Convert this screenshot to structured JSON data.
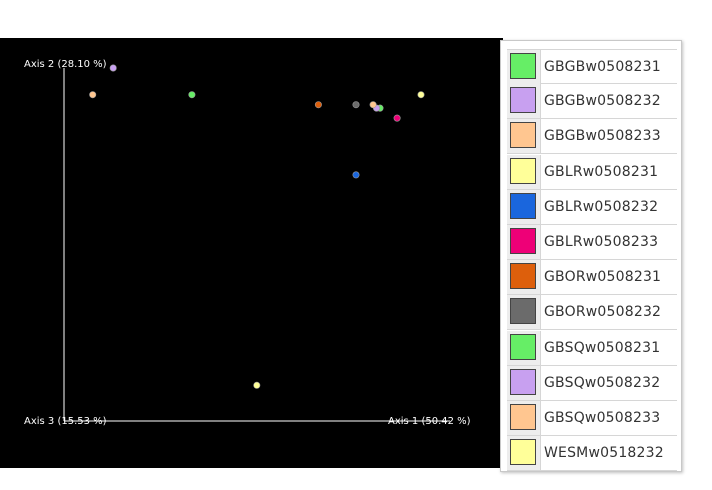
{
  "chart_data": {
    "type": "scatter",
    "title": "",
    "axes": {
      "axis1_label": "Axis 1 (50.42 %)",
      "axis2_label": "Axis 2 (28.10 %)",
      "axis3_label": "Axis 3 (15.53 %)"
    },
    "grid": false,
    "legend_placement": "right",
    "xlim": [
      0,
      1
    ],
    "ylim": [
      0,
      1
    ],
    "series": [
      {
        "name": "GBGBw0508231",
        "color": "#66ee66",
        "x": 0.33,
        "y": 0.92
      },
      {
        "name": "GBGBw0508232",
        "color": "#c8a0f0",
        "x": 0.1,
        "y": 1.0
      },
      {
        "name": "GBGBw0508233",
        "color": "#ffc690",
        "x": 0.04,
        "y": 0.92
      },
      {
        "name": "GBLRw0508231",
        "color": "#ffff99",
        "x": 1.0,
        "y": 0.92
      },
      {
        "name": "GBLRw0508232",
        "color": "#1a66dd",
        "x": 0.81,
        "y": 0.68
      },
      {
        "name": "GBLRw0508233",
        "color": "#ee0077",
        "x": 0.93,
        "y": 0.85
      },
      {
        "name": "GBORw0508231",
        "color": "#dd5f0c",
        "x": 0.7,
        "y": 0.89
      },
      {
        "name": "GBORw0508232",
        "color": "#6b6b6b",
        "x": 0.81,
        "y": 0.89
      },
      {
        "name": "GBSQw0508231",
        "color": "#66ee66",
        "x": 0.88,
        "y": 0.88
      },
      {
        "name": "GBSQw0508232",
        "color": "#c8a0f0",
        "x": 0.87,
        "y": 0.88
      },
      {
        "name": "GBSQw0508233",
        "color": "#ffc690",
        "x": 0.86,
        "y": 0.89
      },
      {
        "name": "WESMw0518232",
        "color": "#ffff99",
        "x": 0.52,
        "y": 0.05
      }
    ]
  }
}
